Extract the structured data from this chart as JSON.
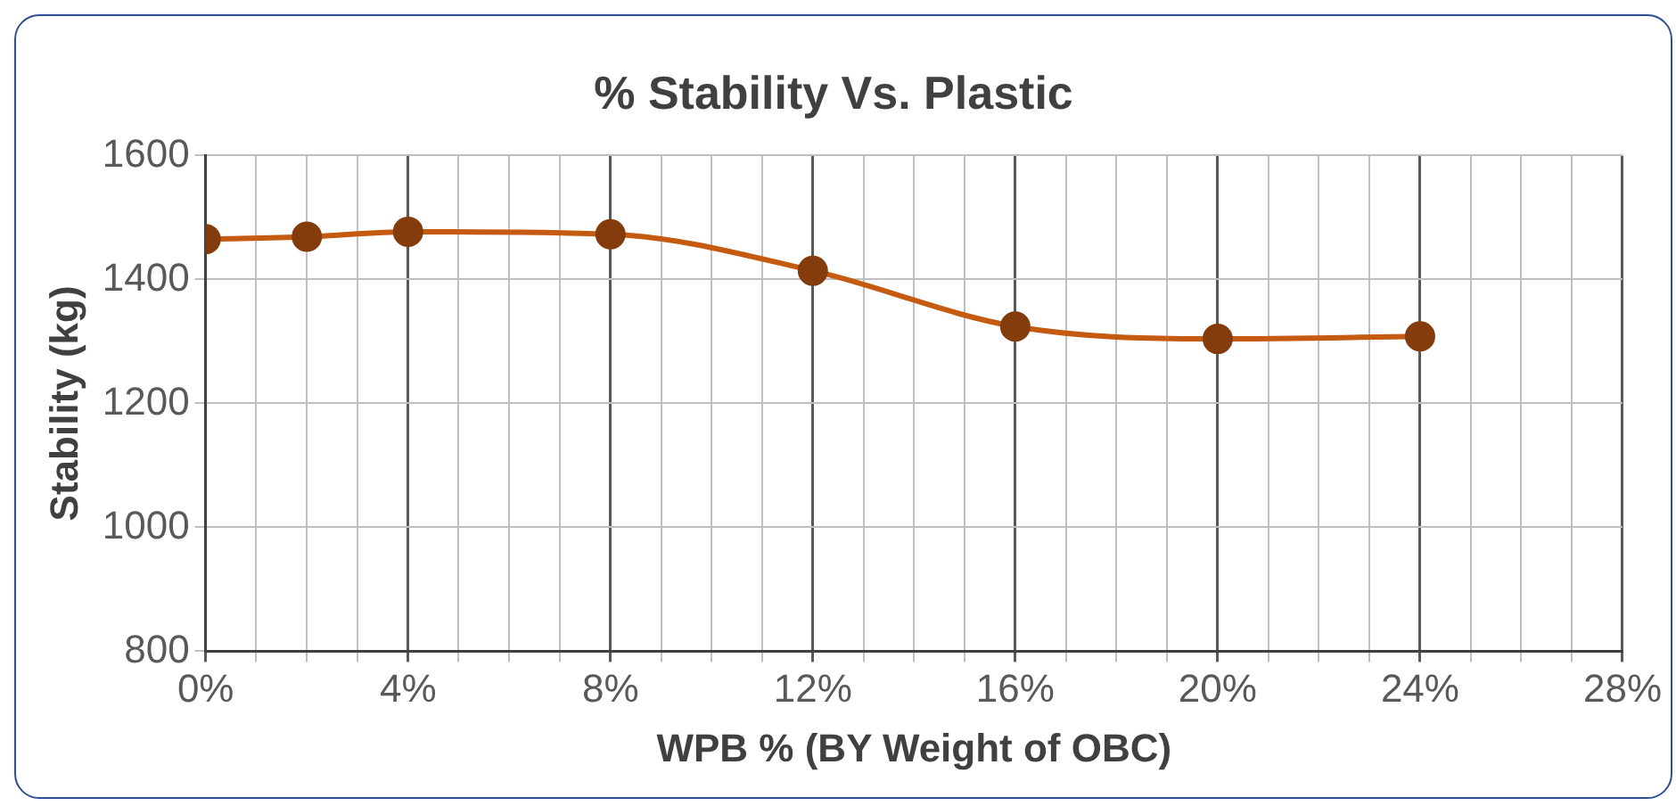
{
  "chart_data": {
    "type": "line",
    "title": "% Stability Vs. Plastic",
    "xlabel": "WPB % (BY Weight of OBC)",
    "ylabel": "Stability (kg)",
    "x": [
      0,
      2,
      4,
      8,
      12,
      16,
      20,
      24
    ],
    "series": [
      {
        "color": "#c55a11",
        "colors": [
          "#843c0c",
          "#843c0c",
          "#843c0c",
          "#843c0c",
          "#843c0c",
          "#843c0c",
          "#843c0c",
          "#843c0c"
        ],
        "values": [
          1465,
          1469,
          1477,
          1473,
          1414,
          1324,
          1304,
          1308
        ]
      }
    ],
    "xlim": [
      0,
      28
    ],
    "xticks": [
      {
        "value": 0,
        "label": "0%"
      },
      {
        "value": 1,
        "label": null
      },
      {
        "value": 2,
        "label": null
      },
      {
        "value": 3,
        "label": null
      },
      {
        "value": 4,
        "label": "4%"
      },
      {
        "value": 5,
        "label": null
      },
      {
        "value": 6,
        "label": null
      },
      {
        "value": 7,
        "label": null
      },
      {
        "value": 8,
        "label": "8%"
      },
      {
        "value": 9,
        "label": null
      },
      {
        "value": 10,
        "label": null
      },
      {
        "value": 11,
        "label": null
      },
      {
        "value": 12,
        "label": "12%"
      },
      {
        "value": 13,
        "label": null
      },
      {
        "value": 14,
        "label": null
      },
      {
        "value": 15,
        "label": null
      },
      {
        "value": 16,
        "label": "16%"
      },
      {
        "value": 17,
        "label": null
      },
      {
        "value": 18,
        "label": null
      },
      {
        "value": 19,
        "label": null
      },
      {
        "value": 20,
        "label": "20%"
      },
      {
        "value": 21,
        "label": null
      },
      {
        "value": 22,
        "label": null
      },
      {
        "value": 23,
        "label": null
      },
      {
        "value": 24,
        "label": "24%"
      },
      {
        "value": 25,
        "label": null
      },
      {
        "value": 26,
        "label": null
      },
      {
        "value": 27,
        "label": null
      },
      {
        "value": 28,
        "label": "28%"
      }
    ],
    "ylim": [
      800,
      1600
    ],
    "yticks": [
      800,
      1000,
      1200,
      1400,
      1600
    ],
    "grid": true,
    "legend": false,
    "marker": "circle",
    "line_style": "solid"
  }
}
